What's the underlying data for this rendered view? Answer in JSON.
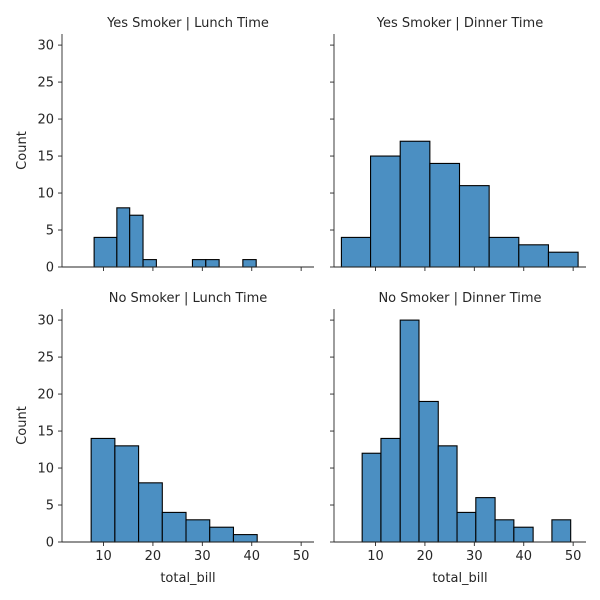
{
  "chart_data": {
    "type": "bar",
    "style": {
      "bar_color": "#4b8fc2",
      "edge_color": "#000000",
      "text_color": "#262626"
    },
    "shared_x": {
      "label": "total_bill",
      "ticks": [
        10,
        20,
        30,
        40,
        50
      ],
      "range": [
        1.6,
        52.6
      ]
    },
    "shared_y": {
      "label": "Count",
      "ticks": [
        0,
        5,
        10,
        15,
        20,
        25,
        30
      ],
      "range": [
        0,
        31.5
      ]
    },
    "panels": [
      {
        "title": "Yes Smoker | Lunch Time",
        "bins": [
          {
            "x0": 8.1,
            "x1": 12.7,
            "count": 4
          },
          {
            "x0": 12.7,
            "x1": 15.3,
            "count": 8
          },
          {
            "x0": 15.3,
            "x1": 18.0,
            "count": 7
          },
          {
            "x0": 18.0,
            "x1": 20.7,
            "count": 1
          },
          {
            "x0": 20.7,
            "x1": 28.0,
            "count": 0
          },
          {
            "x0": 28.0,
            "x1": 30.7,
            "count": 1
          },
          {
            "x0": 30.7,
            "x1": 33.4,
            "count": 1
          },
          {
            "x0": 33.4,
            "x1": 38.2,
            "count": 0
          },
          {
            "x0": 38.2,
            "x1": 40.9,
            "count": 1
          }
        ]
      },
      {
        "title": "Yes Smoker | Dinner Time",
        "bins": [
          {
            "x0": 3.1,
            "x1": 9.0,
            "count": 4
          },
          {
            "x0": 9.0,
            "x1": 15.0,
            "count": 15
          },
          {
            "x0": 15.0,
            "x1": 21.0,
            "count": 17
          },
          {
            "x0": 21.0,
            "x1": 27.0,
            "count": 14
          },
          {
            "x0": 27.0,
            "x1": 33.0,
            "count": 11
          },
          {
            "x0": 33.0,
            "x1": 39.0,
            "count": 4
          },
          {
            "x0": 39.0,
            "x1": 45.0,
            "count": 3
          },
          {
            "x0": 45.0,
            "x1": 51.0,
            "count": 2
          }
        ]
      },
      {
        "title": "No Smoker | Lunch Time",
        "bins": [
          {
            "x0": 7.5,
            "x1": 12.3,
            "count": 14
          },
          {
            "x0": 12.3,
            "x1": 17.1,
            "count": 13
          },
          {
            "x0": 17.1,
            "x1": 21.9,
            "count": 8
          },
          {
            "x0": 21.9,
            "x1": 26.7,
            "count": 4
          },
          {
            "x0": 26.7,
            "x1": 31.5,
            "count": 3
          },
          {
            "x0": 31.5,
            "x1": 36.3,
            "count": 2
          },
          {
            "x0": 36.3,
            "x1": 41.1,
            "count": 1
          }
        ]
      },
      {
        "title": "No Smoker | Dinner Time",
        "bins": [
          {
            "x0": 7.3,
            "x1": 11.1,
            "count": 12
          },
          {
            "x0": 11.1,
            "x1": 15.0,
            "count": 14
          },
          {
            "x0": 15.0,
            "x1": 18.8,
            "count": 30
          },
          {
            "x0": 18.8,
            "x1": 22.7,
            "count": 19
          },
          {
            "x0": 22.7,
            "x1": 26.5,
            "count": 13
          },
          {
            "x0": 26.5,
            "x1": 30.3,
            "count": 4
          },
          {
            "x0": 30.3,
            "x1": 34.2,
            "count": 6
          },
          {
            "x0": 34.2,
            "x1": 38.0,
            "count": 3
          },
          {
            "x0": 38.0,
            "x1": 41.9,
            "count": 2
          },
          {
            "x0": 41.9,
            "x1": 45.7,
            "count": 0
          },
          {
            "x0": 45.7,
            "x1": 49.5,
            "count": 3
          }
        ]
      }
    ]
  }
}
